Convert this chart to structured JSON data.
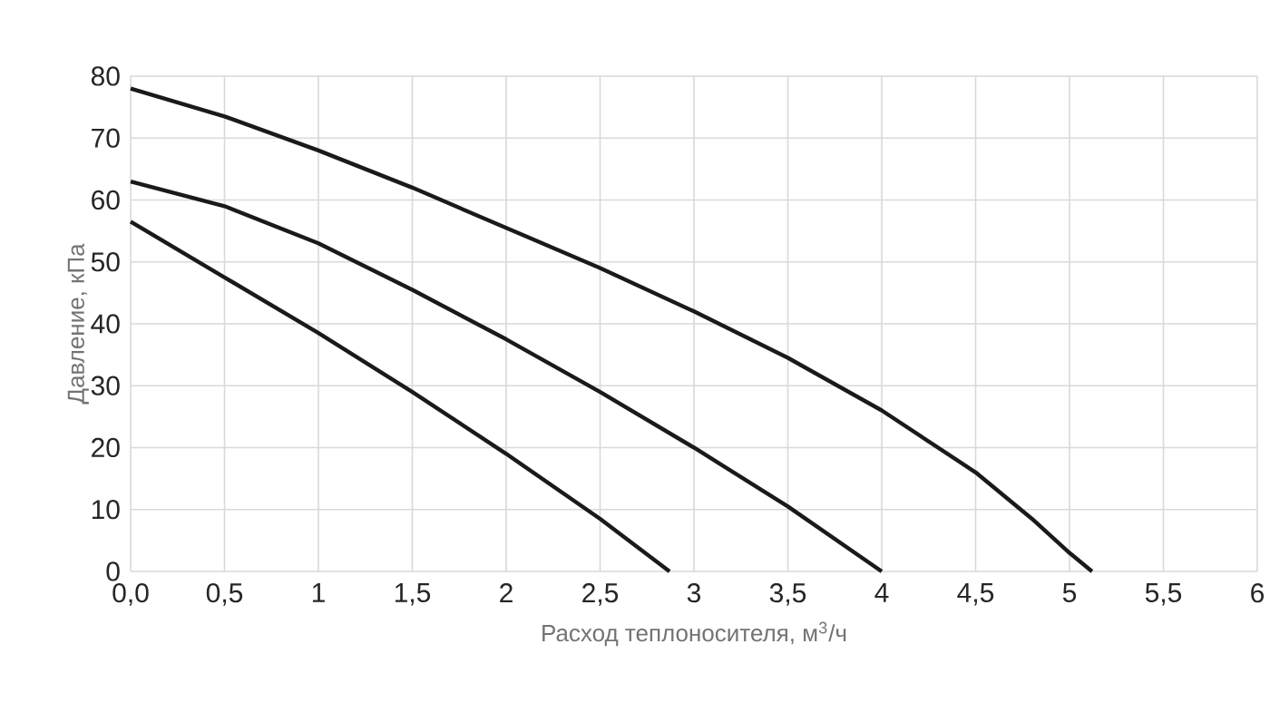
{
  "chart_data": {
    "type": "line",
    "xlabel": "Расход теплоносителя, м$^{3}$/ч",
    "ylabel": "Давление, кПа",
    "xlim": [
      0,
      6
    ],
    "ylim": [
      0,
      80
    ],
    "xticks": [
      {
        "value": 0,
        "label": "0,0"
      },
      {
        "value": 0.5,
        "label": "0,5"
      },
      1,
      {
        "value": 1.5,
        "label": "1,5"
      },
      2,
      {
        "value": 2.5,
        "label": "2,5"
      },
      3,
      {
        "value": 3.5,
        "label": "3,5"
      },
      4,
      {
        "value": 4.5,
        "label": "4,5"
      },
      5,
      {
        "value": 5.5,
        "label": "5,5"
      },
      6
    ],
    "yticks": [
      0,
      10,
      20,
      30,
      40,
      50,
      60,
      70,
      80
    ],
    "grid": true,
    "marker": "none",
    "line_style": "solid",
    "series": [
      {
        "color": "#1a1a1a",
        "x": [
          0,
          0.5,
          1,
          1.5,
          2,
          2.5,
          3,
          3.5,
          4,
          4.5,
          4.8,
          5,
          5.12
        ],
        "values": [
          78,
          73.5,
          68,
          62,
          55.5,
          49,
          42,
          34.5,
          26,
          16,
          8.5,
          3,
          0
        ]
      },
      {
        "color": "#1a1a1a",
        "x": [
          0,
          0.5,
          1,
          1.5,
          2,
          2.5,
          3,
          3.5,
          4
        ],
        "values": [
          63,
          59,
          53,
          45.5,
          37.5,
          29,
          20,
          10.5,
          0
        ]
      },
      {
        "color": "#1a1a1a",
        "x": [
          0,
          0.5,
          1,
          1.5,
          2,
          2.5,
          2.87
        ],
        "values": [
          56.5,
          47.5,
          38.5,
          29,
          19,
          8.5,
          0
        ]
      }
    ]
  }
}
